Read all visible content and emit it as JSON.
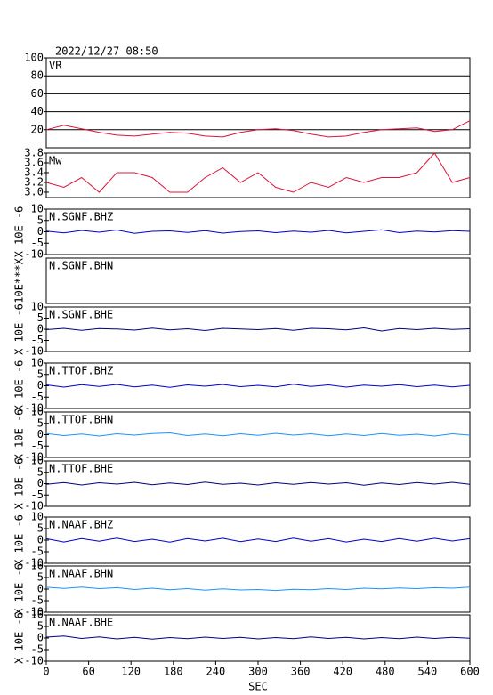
{
  "title": "2022/12/27 08:50",
  "chart_data": [
    {
      "type": "line",
      "title": "VR",
      "xlim": [
        0,
        600
      ],
      "ylim": [
        0,
        100
      ],
      "yticks": [
        20,
        40,
        60,
        80,
        100
      ],
      "grid": true,
      "x": [
        0,
        25,
        50,
        75,
        100,
        125,
        150,
        175,
        200,
        225,
        250,
        275,
        300,
        325,
        350,
        375,
        400,
        425,
        450,
        475,
        500,
        525,
        550,
        575,
        600
      ],
      "series": [
        {
          "color": "#dc143c",
          "values": [
            20,
            25,
            21,
            17,
            14,
            13,
            15,
            17,
            16,
            13,
            12,
            17,
            20,
            21,
            19,
            15,
            12,
            13,
            17,
            20,
            21,
            22,
            18,
            20,
            30
          ]
        }
      ]
    },
    {
      "type": "line",
      "title": "Mw",
      "xlim": [
        0,
        600
      ],
      "ylim": [
        2.89,
        3.8
      ],
      "yticks": [
        {
          "value": 3,
          "label": "3.0"
        },
        3.2,
        3.4,
        3.6,
        3.8
      ],
      "grid": false,
      "x": [
        0,
        25,
        50,
        75,
        100,
        125,
        150,
        175,
        200,
        225,
        250,
        275,
        300,
        325,
        350,
        375,
        400,
        425,
        450,
        475,
        500,
        525,
        550,
        575,
        600
      ],
      "series": [
        {
          "color": "#dc143c",
          "values": [
            3.2,
            3.1,
            3.3,
            3.0,
            3.4,
            3.4,
            3.3,
            3.0,
            3.0,
            3.3,
            3.5,
            3.2,
            3.4,
            3.1,
            3.0,
            3.2,
            3.1,
            3.3,
            3.2,
            3.3,
            3.3,
            3.4,
            3.8,
            3.2,
            3.3
          ]
        }
      ]
    },
    {
      "type": "line",
      "title": "N.SGNF.BHZ",
      "ylabel": "X 10E -6",
      "xlim": [
        0,
        600
      ],
      "ylim": [
        -10,
        10
      ],
      "yticks": [
        -10,
        -5,
        0,
        5,
        10
      ],
      "x": [
        0,
        25,
        50,
        75,
        100,
        125,
        150,
        175,
        200,
        225,
        250,
        275,
        300,
        325,
        350,
        375,
        400,
        425,
        450,
        475,
        500,
        525,
        550,
        575,
        600
      ],
      "series": [
        {
          "color": "#0000cc",
          "values": [
            0.3,
            -0.5,
            0.6,
            -0.2,
            0.8,
            -0.7,
            0.2,
            0.4,
            -0.3,
            0.5,
            -0.6,
            0.1,
            0.4,
            -0.4,
            0.3,
            -0.2,
            0.6,
            -0.5,
            0.2,
            0.9,
            -0.4,
            0.3,
            -0.1,
            0.5,
            0.2
          ]
        }
      ]
    },
    {
      "type": "line",
      "title": "N.SGNF.BHN",
      "ylabel": "10E***X",
      "xlim": [
        0,
        600
      ]
    },
    {
      "type": "line",
      "title": "N.SGNF.BHE",
      "ylabel": "X 10E -6",
      "xlim": [
        0,
        600
      ],
      "ylim": [
        -10,
        10
      ],
      "yticks": [
        -10,
        -5,
        0,
        5,
        10
      ],
      "x": [
        0,
        25,
        50,
        75,
        100,
        125,
        150,
        175,
        200,
        225,
        250,
        275,
        300,
        325,
        350,
        375,
        400,
        425,
        450,
        475,
        500,
        525,
        550,
        575,
        600
      ],
      "series": [
        {
          "color": "#000080",
          "values": [
            -0.2,
            0.4,
            -0.5,
            0.3,
            0.1,
            -0.4,
            0.5,
            -0.3,
            0.2,
            -0.6,
            0.4,
            0.1,
            -0.2,
            0.3,
            -0.5,
            0.4,
            0.2,
            -0.3,
            0.6,
            -0.8,
            0.3,
            -0.2,
            0.4,
            -0.1,
            0.2
          ]
        }
      ]
    },
    {
      "type": "line",
      "title": "N.TTOF.BHZ",
      "ylabel": "X 10E -6",
      "xlim": [
        0,
        600
      ],
      "ylim": [
        -10,
        10
      ],
      "yticks": [
        -10,
        -5,
        0,
        5,
        10
      ],
      "x": [
        0,
        25,
        50,
        75,
        100,
        125,
        150,
        175,
        200,
        225,
        250,
        275,
        300,
        325,
        350,
        375,
        400,
        425,
        450,
        475,
        500,
        525,
        550,
        575,
        600
      ],
      "series": [
        {
          "color": "#0000cc",
          "values": [
            0.4,
            -0.6,
            0.5,
            -0.3,
            0.6,
            -0.5,
            0.3,
            -0.7,
            0.4,
            -0.2,
            0.6,
            -0.4,
            0.2,
            -0.5,
            0.7,
            -0.3,
            0.4,
            -0.6,
            0.3,
            -0.2,
            0.5,
            -0.4,
            0.3,
            -0.5,
            0.2
          ]
        }
      ]
    },
    {
      "type": "line",
      "title": "N.TTOF.BHN",
      "ylabel": "X 10E -6",
      "xlim": [
        0,
        600
      ],
      "ylim": [
        -10,
        10
      ],
      "yticks": [
        -10,
        -5,
        0,
        5,
        10
      ],
      "x": [
        0,
        25,
        50,
        75,
        100,
        125,
        150,
        175,
        200,
        225,
        250,
        275,
        300,
        325,
        350,
        375,
        400,
        425,
        450,
        475,
        500,
        525,
        550,
        575,
        600
      ],
      "series": [
        {
          "color": "#1e90ff",
          "values": [
            0.5,
            -0.4,
            0.3,
            -0.6,
            0.4,
            -0.2,
            0.5,
            0.8,
            -0.4,
            0.3,
            -0.5,
            0.4,
            -0.3,
            0.6,
            -0.2,
            0.4,
            -0.5,
            0.3,
            -0.4,
            0.5,
            -0.3,
            0.2,
            -0.6,
            0.4,
            -0.2
          ]
        }
      ]
    },
    {
      "type": "line",
      "title": "N.TTOF.BHE",
      "ylabel": "X 10E -6",
      "xlim": [
        0,
        600
      ],
      "ylim": [
        -10,
        10
      ],
      "yticks": [
        -10,
        -5,
        0,
        5,
        10
      ],
      "x": [
        0,
        25,
        50,
        75,
        100,
        125,
        150,
        175,
        200,
        225,
        250,
        275,
        300,
        325,
        350,
        375,
        400,
        425,
        450,
        475,
        500,
        525,
        550,
        575,
        600
      ],
      "series": [
        {
          "color": "#000080",
          "values": [
            -0.3,
            0.5,
            -0.6,
            0.4,
            -0.2,
            0.6,
            -0.5,
            0.3,
            -0.4,
            0.7,
            -0.3,
            0.2,
            -0.6,
            0.4,
            -0.3,
            0.5,
            -0.2,
            0.4,
            -0.7,
            0.3,
            -0.4,
            0.5,
            -0.2,
            0.6,
            -0.3
          ]
        }
      ]
    },
    {
      "type": "line",
      "title": "N.NAAF.BHZ",
      "ylabel": "X 10E -6",
      "xlim": [
        0,
        600
      ],
      "ylim": [
        -10,
        10
      ],
      "yticks": [
        -10,
        -5,
        0,
        5,
        10
      ],
      "x": [
        0,
        25,
        50,
        75,
        100,
        125,
        150,
        175,
        200,
        225,
        250,
        275,
        300,
        325,
        350,
        375,
        400,
        425,
        450,
        475,
        500,
        525,
        550,
        575,
        600
      ],
      "series": [
        {
          "color": "#0000cc",
          "values": [
            0.6,
            -0.8,
            0.7,
            -0.5,
            0.9,
            -0.6,
            0.4,
            -0.9,
            0.7,
            -0.4,
            0.8,
            -0.7,
            0.5,
            -0.6,
            0.9,
            -0.5,
            0.6,
            -0.8,
            0.4,
            -0.6,
            0.7,
            -0.5,
            0.8,
            -0.4,
            0.6
          ]
        }
      ]
    },
    {
      "type": "line",
      "title": "N.NAAF.BHN",
      "ylabel": "X 10E -6",
      "xlim": [
        0,
        600
      ],
      "ylim": [
        -10,
        10
      ],
      "yticks": [
        -10,
        -5,
        0,
        5,
        10
      ],
      "x": [
        0,
        25,
        50,
        75,
        100,
        125,
        150,
        175,
        200,
        225,
        250,
        275,
        300,
        325,
        350,
        375,
        400,
        425,
        450,
        475,
        500,
        525,
        550,
        575,
        600
      ],
      "series": [
        {
          "color": "#1e90ff",
          "values": [
            0.8,
            0.3,
            0.9,
            0.2,
            0.6,
            -0.2,
            0.4,
            -0.3,
            0.2,
            -0.5,
            0.1,
            -0.4,
            -0.2,
            -0.6,
            -0.1,
            -0.3,
            0.2,
            -0.2,
            0.4,
            0.1,
            0.5,
            0.2,
            0.6,
            0.4,
            0.9
          ]
        }
      ]
    },
    {
      "type": "line",
      "title": "N.NAAF.BHE",
      "ylabel": "X 10E -6",
      "xlim": [
        0,
        600
      ],
      "ylim": [
        -10,
        10
      ],
      "yticks": [
        -10,
        -5,
        0,
        5,
        10
      ],
      "xticks": [
        0,
        60,
        120,
        180,
        240,
        300,
        360,
        420,
        480,
        540,
        600
      ],
      "xlabel": "SEC",
      "x": [
        0,
        25,
        50,
        75,
        100,
        125,
        150,
        175,
        200,
        225,
        250,
        275,
        300,
        325,
        350,
        375,
        400,
        425,
        450,
        475,
        500,
        525,
        550,
        575,
        600
      ],
      "series": [
        {
          "color": "#000080",
          "values": [
            0.4,
            0.9,
            -0.2,
            0.5,
            -0.4,
            0.3,
            -0.5,
            0.2,
            -0.3,
            0.4,
            -0.2,
            0.3,
            -0.4,
            0.2,
            -0.3,
            0.5,
            -0.2,
            0.3,
            -0.4,
            0.2,
            -0.3,
            0.4,
            -0.2,
            0.3,
            -0.1
          ]
        }
      ]
    }
  ]
}
